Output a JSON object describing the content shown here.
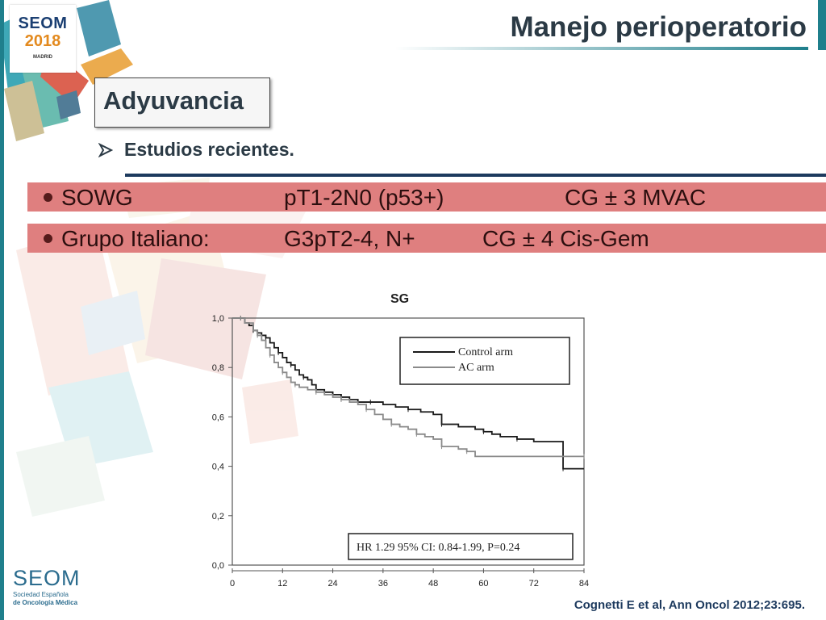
{
  "header": {
    "title": "Manejo perioperatorio",
    "logo": {
      "name": "SEOM",
      "year": "2018",
      "city": "MADRID"
    }
  },
  "section": {
    "title": "Adyuvancia"
  },
  "bullet": {
    "text": "Estudios recientes."
  },
  "table_rows": [
    {
      "study": "SOWG",
      "population": "pT1-2N0 (p53+)",
      "treatment": "CG ± 3 MVAC"
    },
    {
      "study": "Grupo Italiano:",
      "population": "G3pT2-4, N+",
      "treatment": "CG ± 4 Cis-Gem"
    }
  ],
  "chart_data": {
    "type": "line",
    "title": "SG",
    "xlabel": "",
    "ylabel": "",
    "x_ticks": [
      "0",
      "12",
      "24",
      "36",
      "48",
      "60",
      "72",
      "84"
    ],
    "y_ticks": [
      "0,0",
      "0,2",
      "0,4",
      "0,6",
      "0,8",
      "1,0"
    ],
    "xlim": [
      0,
      84
    ],
    "ylim": [
      0,
      1.0
    ],
    "legend_position": "top-right",
    "series": [
      {
        "name": "Control arm",
        "color": "#1a1a1a",
        "points": [
          [
            0,
            1.0
          ],
          [
            2,
            1.0
          ],
          [
            3,
            0.98
          ],
          [
            4,
            0.97
          ],
          [
            5,
            0.95
          ],
          [
            6,
            0.94
          ],
          [
            7,
            0.93
          ],
          [
            8,
            0.92
          ],
          [
            9,
            0.9
          ],
          [
            10,
            0.88
          ],
          [
            11,
            0.86
          ],
          [
            12,
            0.84
          ],
          [
            13,
            0.82
          ],
          [
            14,
            0.81
          ],
          [
            15,
            0.79
          ],
          [
            16,
            0.77
          ],
          [
            17,
            0.76
          ],
          [
            18,
            0.75
          ],
          [
            19,
            0.73
          ],
          [
            20,
            0.71
          ],
          [
            22,
            0.7
          ],
          [
            24,
            0.69
          ],
          [
            26,
            0.68
          ],
          [
            28,
            0.67
          ],
          [
            30,
            0.66
          ],
          [
            33,
            0.66
          ],
          [
            36,
            0.65
          ],
          [
            39,
            0.64
          ],
          [
            42,
            0.63
          ],
          [
            45,
            0.62
          ],
          [
            48,
            0.61
          ],
          [
            50,
            0.57
          ],
          [
            54,
            0.56
          ],
          [
            58,
            0.55
          ],
          [
            60,
            0.54
          ],
          [
            62,
            0.53
          ],
          [
            64,
            0.52
          ],
          [
            68,
            0.51
          ],
          [
            72,
            0.5
          ],
          [
            78,
            0.5
          ],
          [
            79,
            0.39
          ],
          [
            84,
            0.39
          ]
        ]
      },
      {
        "name": "AC arm",
        "color": "#8a8a8a",
        "points": [
          [
            0,
            1.0
          ],
          [
            2,
            1.0
          ],
          [
            3,
            0.98
          ],
          [
            5,
            0.95
          ],
          [
            6,
            0.93
          ],
          [
            7,
            0.91
          ],
          [
            8,
            0.88
          ],
          [
            9,
            0.85
          ],
          [
            10,
            0.82
          ],
          [
            11,
            0.8
          ],
          [
            12,
            0.78
          ],
          [
            13,
            0.76
          ],
          [
            14,
            0.74
          ],
          [
            15,
            0.73
          ],
          [
            16,
            0.72
          ],
          [
            18,
            0.71
          ],
          [
            20,
            0.7
          ],
          [
            22,
            0.69
          ],
          [
            24,
            0.68
          ],
          [
            26,
            0.67
          ],
          [
            28,
            0.66
          ],
          [
            30,
            0.65
          ],
          [
            32,
            0.63
          ],
          [
            34,
            0.61
          ],
          [
            36,
            0.59
          ],
          [
            38,
            0.57
          ],
          [
            40,
            0.56
          ],
          [
            42,
            0.55
          ],
          [
            44,
            0.53
          ],
          [
            46,
            0.52
          ],
          [
            48,
            0.51
          ],
          [
            50,
            0.48
          ],
          [
            52,
            0.48
          ],
          [
            54,
            0.47
          ],
          [
            56,
            0.46
          ],
          [
            58,
            0.44
          ],
          [
            60,
            0.44
          ],
          [
            84,
            0.44
          ]
        ]
      }
    ],
    "annotation": "HR 1.29 95% CI: 0.84-1.99, P=0.24"
  },
  "footer": {
    "logo_name": "SEOM",
    "logo_sub1": "Sociedad Española",
    "logo_sub2": "de Oncología Médica",
    "citation": "Cognetti E et al, Ann Oncol 2012;23:695."
  },
  "colors": {
    "accent": "#1f7f8c",
    "band": "#df7f7f",
    "text": "#2b3a45"
  }
}
